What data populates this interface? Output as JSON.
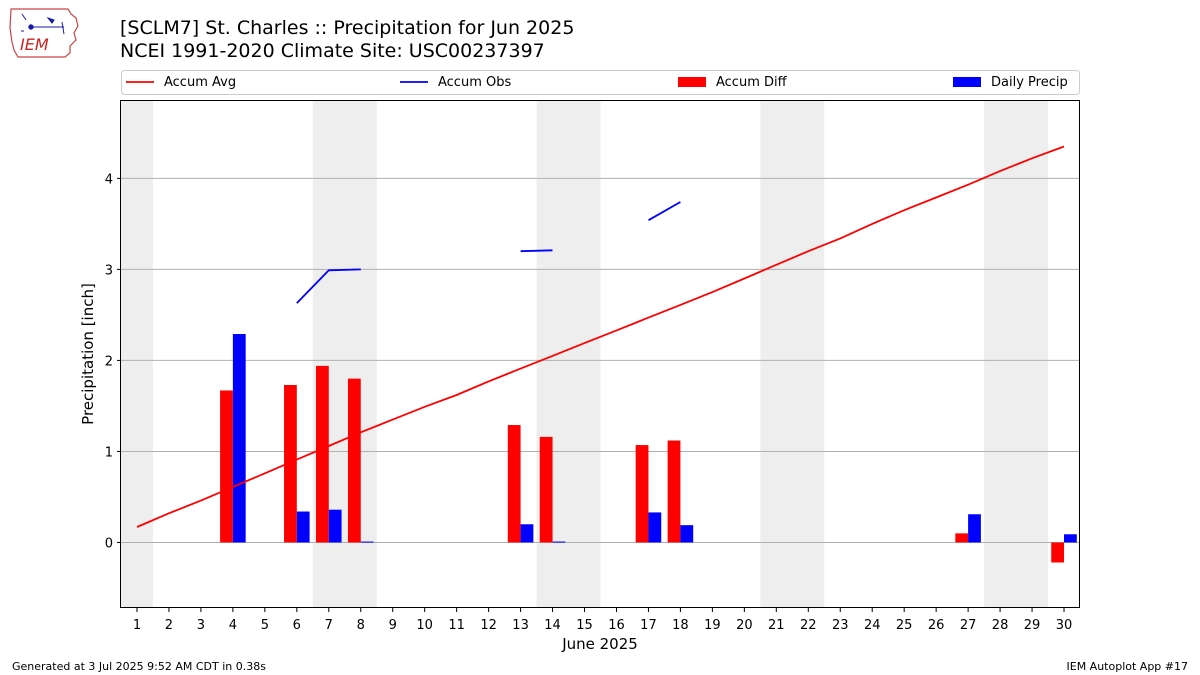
{
  "header": {
    "title_line1": "[SCLM7] St. Charles :: Precipitation for Jun 2025",
    "title_line2": "NCEI 1991-2020 Climate Site: USC00237397"
  },
  "logo": {
    "text": "IEM"
  },
  "footer": {
    "generated": "Generated at 3 Jul 2025 9:52 AM CDT in 0.38s",
    "app": "IEM Autoplot App #17"
  },
  "colors": {
    "accum_avg": "#ff0000",
    "accum_obs": "#0000ff",
    "accum_diff": "#ff0000",
    "daily_precip": "#0000ff",
    "weekend_shade": "#eeeeee",
    "grid": "#b0b0b0"
  },
  "chart_data": {
    "type": "bar",
    "xlabel": "June 2025",
    "ylabel": "Precipitation [inch]",
    "xlim": [
      0.5,
      30.5
    ],
    "ylim": [
      -0.72,
      4.85
    ],
    "yticks": [
      0,
      1,
      2,
      3,
      4
    ],
    "grid": "y",
    "legend_placement": "top",
    "weekend_spans": [
      [
        0.5,
        1.5
      ],
      [
        6.5,
        8.5
      ],
      [
        13.5,
        15.5
      ],
      [
        20.5,
        22.5
      ],
      [
        27.5,
        29.5
      ]
    ],
    "days": [
      1,
      2,
      3,
      4,
      5,
      6,
      7,
      8,
      9,
      10,
      11,
      12,
      13,
      14,
      15,
      16,
      17,
      18,
      19,
      20,
      21,
      22,
      23,
      24,
      25,
      26,
      27,
      28,
      29,
      30
    ],
    "series": [
      {
        "name": "Accum Avg",
        "kind": "line",
        "values": [
          0.17,
          0.32,
          0.46,
          0.61,
          0.76,
          0.91,
          1.06,
          1.21,
          1.35,
          1.49,
          1.62,
          1.77,
          1.91,
          2.05,
          2.19,
          2.33,
          2.47,
          2.61,
          2.75,
          2.9,
          3.05,
          3.2,
          3.34,
          3.5,
          3.65,
          3.79,
          3.93,
          4.08,
          4.22,
          4.35
        ]
      },
      {
        "name": "Accum Obs",
        "kind": "line",
        "values": [
          null,
          null,
          null,
          null,
          null,
          2.63,
          2.99,
          3.0,
          null,
          null,
          null,
          null,
          3.2,
          3.21,
          null,
          null,
          3.54,
          3.74,
          null,
          null,
          null,
          null,
          null,
          null,
          null,
          null,
          null,
          null,
          null,
          null
        ]
      },
      {
        "name": "Accum Diff",
        "kind": "bar",
        "values": [
          0,
          0,
          0,
          1.67,
          0,
          1.73,
          1.94,
          1.8,
          0,
          0,
          0,
          0,
          1.29,
          1.16,
          0,
          0,
          1.07,
          1.12,
          0,
          0,
          0,
          0,
          0,
          0,
          0,
          0,
          0.1,
          0,
          0,
          -0.22
        ]
      },
      {
        "name": "Daily Precip",
        "kind": "bar",
        "values": [
          0,
          0,
          0,
          2.29,
          0,
          0.34,
          0.36,
          0.01,
          0,
          0,
          0,
          0,
          0.2,
          0.01,
          0,
          0,
          0.33,
          0.19,
          0,
          0,
          0,
          0,
          0,
          0,
          0,
          0,
          0.31,
          0,
          0,
          0.09
        ]
      }
    ]
  }
}
